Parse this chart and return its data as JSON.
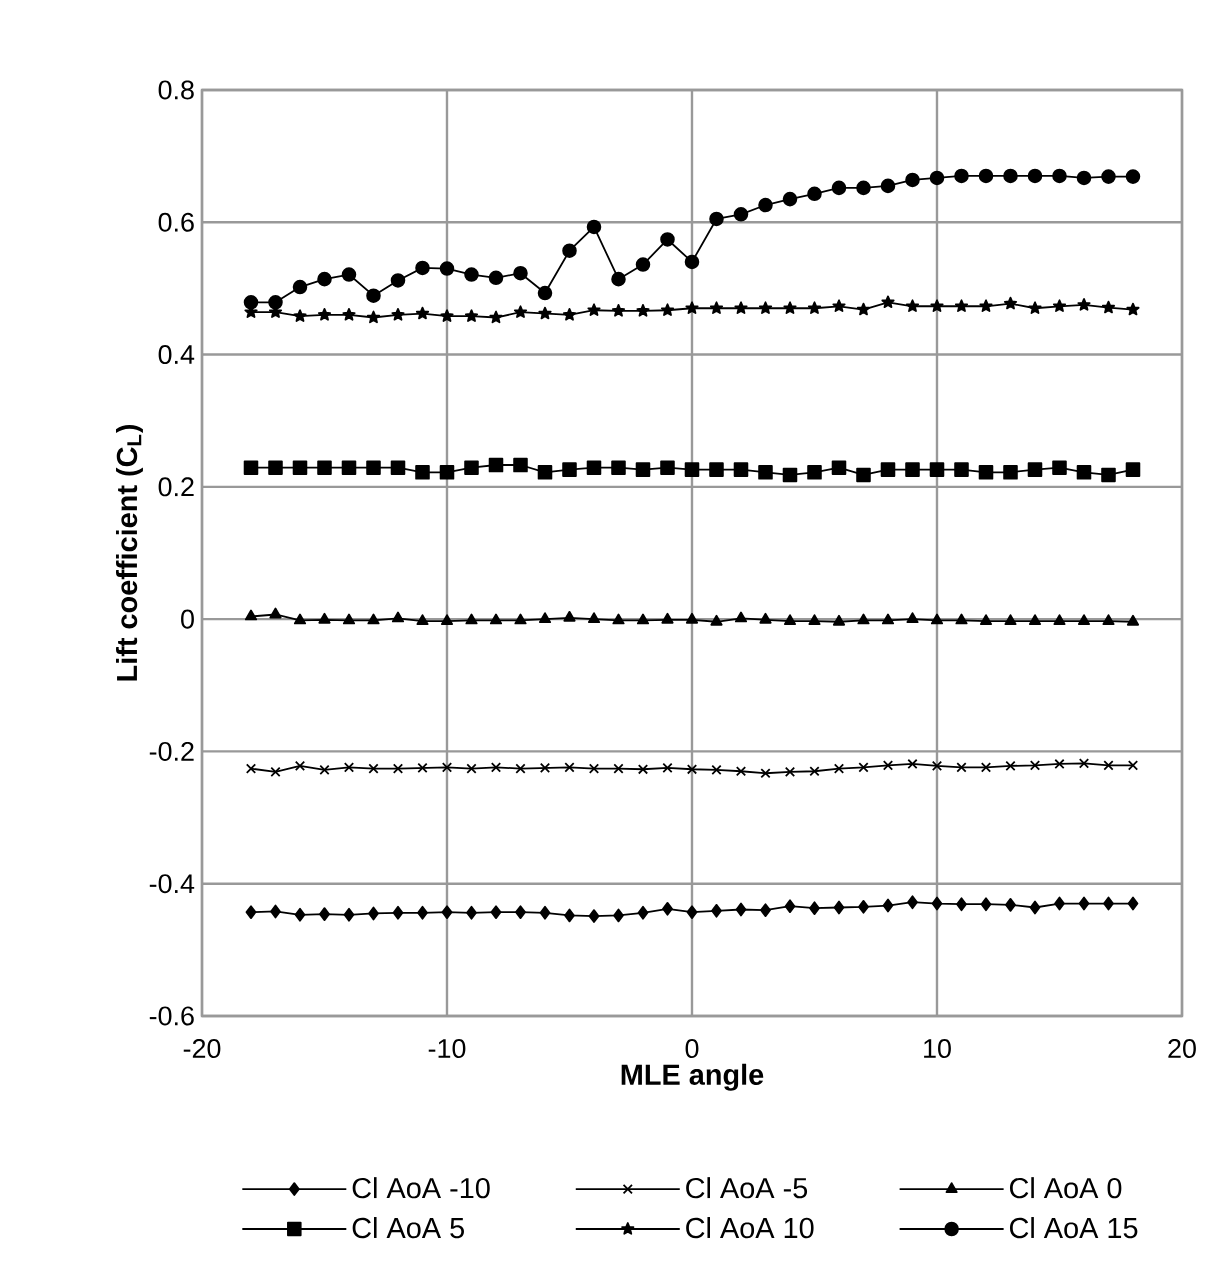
{
  "chart_data": {
    "type": "line",
    "xlabel": "MLE angle",
    "ylabel": "Lift coefficient (C$_{L}$)",
    "x": [
      -18,
      -17,
      -16,
      -15,
      -14,
      -13,
      -12,
      -11,
      -10,
      -9,
      -8,
      -7,
      -6,
      -5,
      -4,
      -3,
      -2,
      -1,
      0,
      1,
      2,
      3,
      4,
      5,
      6,
      7,
      8,
      9,
      10,
      11,
      12,
      13,
      14,
      15,
      16,
      17,
      18
    ],
    "series": [
      {
        "name": "Cl AoA -10",
        "color": "#000000",
        "marker": "diamond",
        "values": [
          -0.443,
          -0.442,
          -0.447,
          -0.446,
          -0.447,
          -0.445,
          -0.444,
          -0.444,
          -0.443,
          -0.444,
          -0.443,
          -0.443,
          -0.444,
          -0.448,
          -0.449,
          -0.448,
          -0.444,
          -0.438,
          -0.443,
          -0.441,
          -0.439,
          -0.44,
          -0.434,
          -0.437,
          -0.436,
          -0.435,
          -0.433,
          -0.428,
          -0.43,
          -0.431,
          -0.431,
          -0.432,
          -0.436,
          -0.43,
          -0.43,
          -0.43,
          -0.43
        ]
      },
      {
        "name": "Cl AoA -5",
        "color": "#000000",
        "marker": "cross",
        "values": [
          -0.226,
          -0.231,
          -0.222,
          -0.228,
          -0.224,
          -0.226,
          -0.226,
          -0.225,
          -0.224,
          -0.226,
          -0.224,
          -0.226,
          -0.225,
          -0.224,
          -0.226,
          -0.226,
          -0.227,
          -0.225,
          -0.227,
          -0.228,
          -0.23,
          -0.233,
          -0.231,
          -0.23,
          -0.226,
          -0.224,
          -0.221,
          -0.219,
          -0.222,
          -0.224,
          -0.224,
          -0.222,
          -0.221,
          -0.219,
          -0.218,
          -0.221,
          -0.221
        ]
      },
      {
        "name": "Cl AoA 0",
        "color": "#000000",
        "marker": "triangle",
        "values": [
          0.004,
          0.007,
          -0.002,
          -0.001,
          -0.002,
          -0.002,
          0.001,
          -0.003,
          -0.003,
          -0.002,
          -0.002,
          -0.002,
          0.0,
          0.002,
          0.0,
          -0.002,
          -0.002,
          -0.001,
          -0.001,
          -0.004,
          0.001,
          -0.001,
          -0.003,
          -0.003,
          -0.004,
          -0.002,
          -0.002,
          0.0,
          -0.002,
          -0.002,
          -0.003,
          -0.003,
          -0.003,
          -0.003,
          -0.003,
          -0.003,
          -0.004
        ]
      },
      {
        "name": "Cl AoA 5",
        "color": "#000000",
        "marker": "square",
        "values": [
          0.229,
          0.229,
          0.229,
          0.229,
          0.229,
          0.229,
          0.229,
          0.222,
          0.222,
          0.229,
          0.233,
          0.233,
          0.222,
          0.226,
          0.229,
          0.229,
          0.226,
          0.229,
          0.226,
          0.226,
          0.226,
          0.222,
          0.218,
          0.222,
          0.229,
          0.218,
          0.226,
          0.226,
          0.226,
          0.226,
          0.222,
          0.222,
          0.226,
          0.229,
          0.222,
          0.218,
          0.226
        ]
      },
      {
        "name": "Cl AoA 10",
        "color": "#000000",
        "marker": "star",
        "values": [
          0.464,
          0.464,
          0.458,
          0.46,
          0.46,
          0.456,
          0.46,
          0.462,
          0.458,
          0.458,
          0.456,
          0.464,
          0.462,
          0.46,
          0.467,
          0.466,
          0.466,
          0.467,
          0.47,
          0.47,
          0.47,
          0.47,
          0.47,
          0.47,
          0.473,
          0.468,
          0.479,
          0.473,
          0.473,
          0.473,
          0.473,
          0.477,
          0.47,
          0.473,
          0.475,
          0.471,
          0.468
        ]
      },
      {
        "name": "Cl AoA 15",
        "color": "#000000",
        "marker": "circle",
        "values": [
          0.479,
          0.479,
          0.502,
          0.514,
          0.521,
          0.489,
          0.512,
          0.531,
          0.53,
          0.521,
          0.516,
          0.523,
          0.493,
          0.557,
          0.593,
          0.514,
          0.536,
          0.574,
          0.54,
          0.605,
          0.612,
          0.626,
          0.635,
          0.643,
          0.652,
          0.652,
          0.655,
          0.664,
          0.667,
          0.67,
          0.67,
          0.67,
          0.67,
          0.67,
          0.667,
          0.669,
          0.669
        ]
      }
    ],
    "xlim": [
      -20,
      20
    ],
    "xticks": [
      -20,
      -10,
      0,
      10,
      20
    ],
    "ylim": [
      -0.6,
      0.8
    ],
    "yticks": [
      -0.6,
      -0.4,
      -0.2,
      0,
      0.2,
      0.4,
      0.6,
      0.8
    ],
    "grid": true,
    "legend": "bottom",
    "line_style": "solid"
  }
}
